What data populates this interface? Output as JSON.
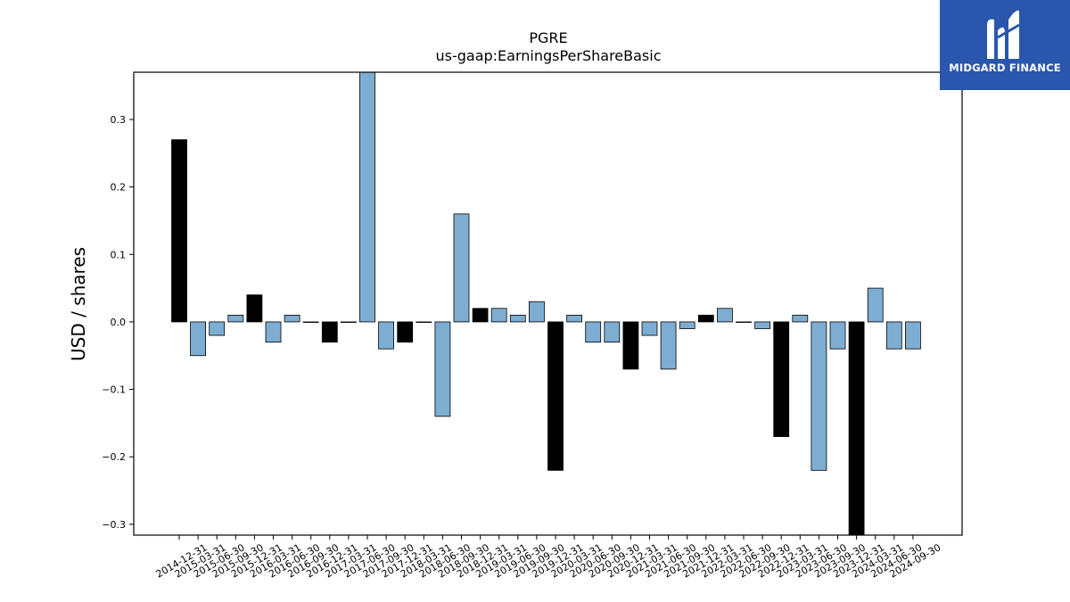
{
  "brand": {
    "name": "MIDGARD FINANCE",
    "mark": "MF-monogram"
  },
  "chart_data": {
    "type": "bar",
    "title": "PGRE",
    "subtitle": "us-gaap:EarningsPerShareBasic",
    "xlabel": "",
    "ylabel": "USD / shares",
    "ylim": [
      -0.316,
      0.37
    ],
    "yticks": [
      -0.3,
      -0.2,
      -0.1,
      0.0,
      0.1,
      0.2,
      0.3
    ],
    "ytick_labels": [
      "−0.3",
      "−0.2",
      "−0.1",
      "0.0",
      "0.1",
      "0.2",
      "0.3"
    ],
    "grid": false,
    "colors": {
      "annual": "#000000",
      "quarterly": "#7eadd2",
      "edge": "#000000"
    },
    "categories": [
      "2014-12-31",
      "2015-03-31",
      "2015-06-30",
      "2015-09-30",
      "2015-12-31",
      "2016-03-31",
      "2016-06-30",
      "2016-09-30",
      "2016-12-31",
      "2017-03-31",
      "2017-06-30",
      "2017-09-30",
      "2017-12-31",
      "2018-03-31",
      "2018-06-30",
      "2018-09-30",
      "2018-12-31",
      "2019-03-31",
      "2019-06-30",
      "2019-09-30",
      "2019-12-31",
      "2020-03-31",
      "2020-06-30",
      "2020-09-30",
      "2020-12-31",
      "2021-03-31",
      "2021-06-30",
      "2021-09-30",
      "2021-12-31",
      "2022-03-31",
      "2022-06-30",
      "2022-09-30",
      "2022-12-31",
      "2023-03-31",
      "2023-06-30",
      "2023-09-30",
      "2023-12-31",
      "2024-03-31",
      "2024-06-30",
      "2024-09-30"
    ],
    "values": [
      0.27,
      -0.05,
      -0.02,
      0.01,
      0.04,
      -0.03,
      0.01,
      0.0,
      -0.03,
      0.0,
      0.37,
      -0.04,
      -0.03,
      0.0,
      -0.14,
      0.16,
      0.02,
      0.02,
      0.01,
      0.03,
      -0.22,
      0.01,
      -0.03,
      -0.03,
      -0.07,
      -0.02,
      -0.07,
      -0.01,
      0.01,
      0.02,
      0.0,
      -0.01,
      -0.17,
      0.01,
      -0.22,
      -0.04,
      -0.316,
      0.05,
      -0.04,
      -0.04
    ],
    "annual": [
      true,
      false,
      false,
      false,
      true,
      false,
      false,
      false,
      true,
      false,
      false,
      false,
      true,
      false,
      false,
      false,
      true,
      false,
      false,
      false,
      true,
      false,
      false,
      false,
      true,
      false,
      false,
      false,
      true,
      false,
      false,
      false,
      true,
      false,
      false,
      false,
      true,
      false,
      false,
      false
    ]
  }
}
